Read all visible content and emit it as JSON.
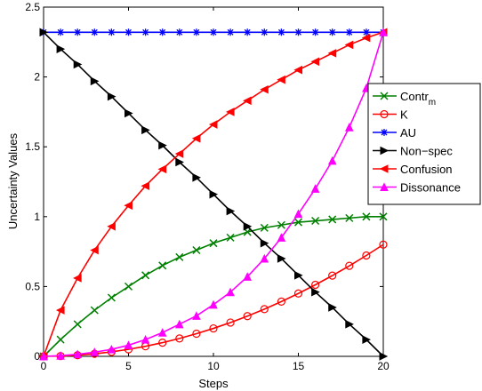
{
  "chart_data": {
    "type": "line",
    "xlabel": "Steps",
    "ylabel": "Uncertainty Values",
    "xlim": [
      0,
      20
    ],
    "ylim": [
      0,
      2.5
    ],
    "xticks": [
      "0",
      "5",
      "10",
      "15",
      "20"
    ],
    "yticks": [
      "0",
      "0.5",
      "1",
      "1.5",
      "2",
      "2.5"
    ],
    "grid": false,
    "legend_position": "right",
    "x": [
      0,
      1,
      2,
      3,
      4,
      5,
      6,
      7,
      8,
      9,
      10,
      11,
      12,
      13,
      14,
      15,
      16,
      17,
      18,
      19,
      20
    ],
    "series": [
      {
        "name": "Contr",
        "name_sub": "m",
        "legend_label": "Contr m",
        "color": "#008000",
        "marker": "x",
        "values": [
          0,
          0.12,
          0.23,
          0.33,
          0.42,
          0.5,
          0.58,
          0.65,
          0.71,
          0.76,
          0.81,
          0.85,
          0.89,
          0.92,
          0.94,
          0.96,
          0.97,
          0.98,
          0.99,
          1.0,
          1.0
        ]
      },
      {
        "name": "K",
        "color": "#ff0000",
        "marker": "o",
        "values": [
          0,
          0.002,
          0.008,
          0.018,
          0.032,
          0.05,
          0.072,
          0.098,
          0.128,
          0.162,
          0.2,
          0.242,
          0.288,
          0.338,
          0.392,
          0.45,
          0.512,
          0.578,
          0.648,
          0.722,
          0.8
        ]
      },
      {
        "name": "AU",
        "color": "#0000ff",
        "marker": "*",
        "values": [
          2.32,
          2.32,
          2.32,
          2.32,
          2.32,
          2.32,
          2.32,
          2.32,
          2.32,
          2.32,
          2.32,
          2.32,
          2.32,
          2.32,
          2.32,
          2.32,
          2.32,
          2.32,
          2.32,
          2.32,
          2.32
        ]
      },
      {
        "name": "Non−spec",
        "color": "#000000",
        "marker": ">",
        "values": [
          2.32,
          2.2,
          2.09,
          1.97,
          1.86,
          1.74,
          1.62,
          1.51,
          1.39,
          1.28,
          1.16,
          1.04,
          0.93,
          0.81,
          0.7,
          0.58,
          0.46,
          0.35,
          0.23,
          0.12,
          0
        ]
      },
      {
        "name": "Confusion",
        "color": "#ff0000",
        "marker": "<",
        "values": [
          0,
          0.33,
          0.56,
          0.76,
          0.93,
          1.08,
          1.22,
          1.34,
          1.45,
          1.56,
          1.66,
          1.75,
          1.83,
          1.91,
          1.98,
          2.05,
          2.11,
          2.17,
          2.23,
          2.28,
          2.32
        ]
      },
      {
        "name": "Dissonance",
        "color": "#ff00ff",
        "marker": "^",
        "values": [
          0,
          0.005,
          0.015,
          0.03,
          0.05,
          0.08,
          0.12,
          0.17,
          0.23,
          0.29,
          0.37,
          0.46,
          0.57,
          0.7,
          0.85,
          1.02,
          1.2,
          1.4,
          1.64,
          1.92,
          2.32
        ]
      }
    ]
  }
}
